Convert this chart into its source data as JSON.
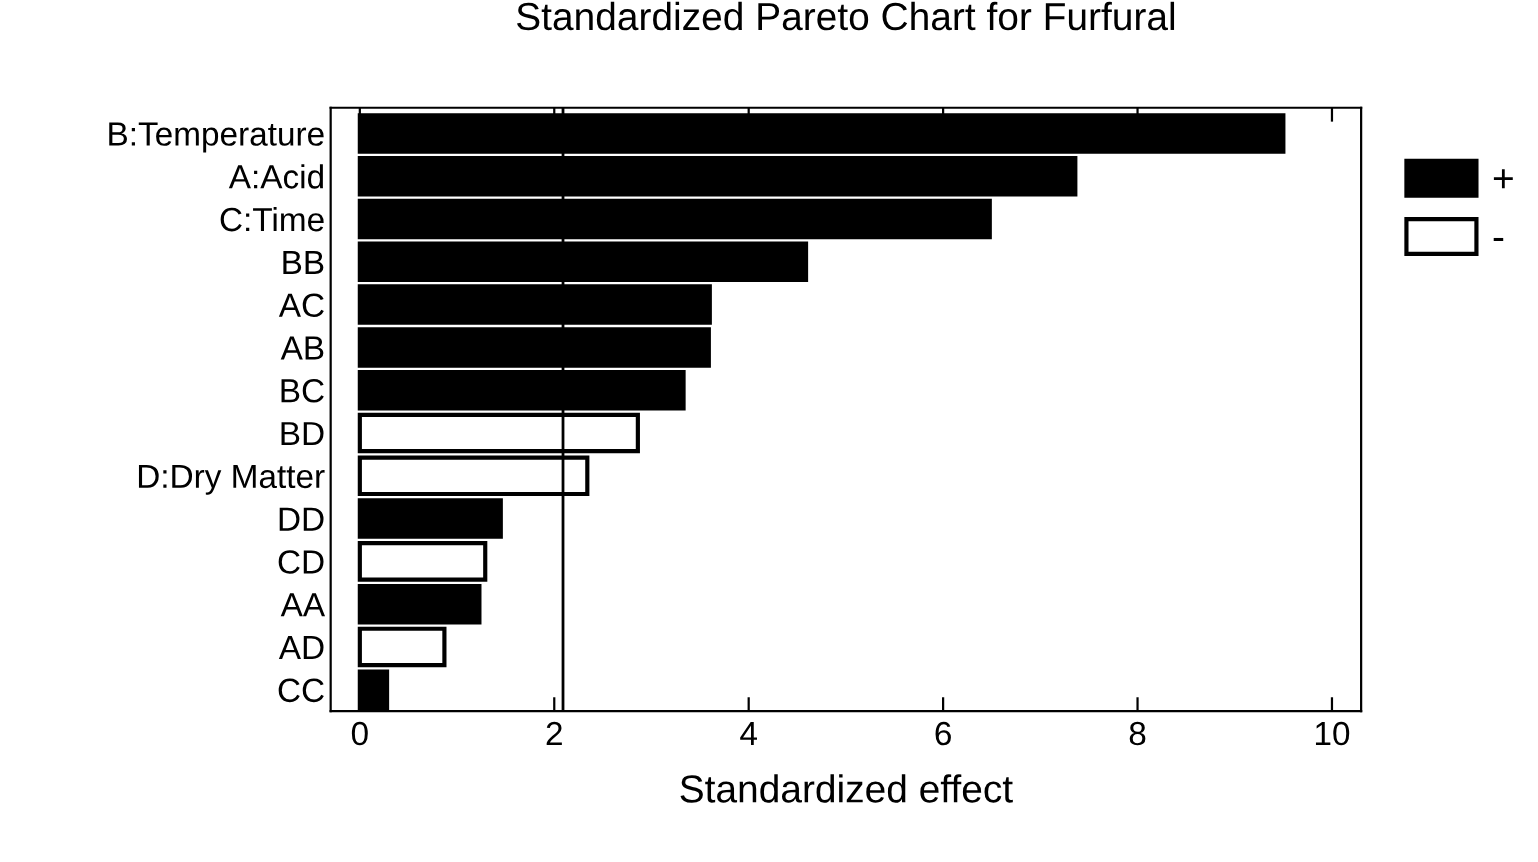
{
  "chart_data": {
    "type": "bar",
    "orientation": "horizontal",
    "title": "Standardized Pareto Chart for Furfural",
    "xlabel": "Standardized effect",
    "categories": [
      "B:Temperature",
      "A:Acid",
      "C:Time",
      "BB",
      "AC",
      "AB",
      "BC",
      "BD",
      "D:Dry Matter",
      "DD",
      "CD",
      "AA",
      "AD",
      "CC"
    ],
    "series": [
      {
        "name": "+",
        "color": "#000000",
        "values": [
          9.5,
          7.36,
          6.48,
          4.59,
          3.6,
          3.59,
          3.33,
          null,
          null,
          1.45,
          null,
          1.23,
          null,
          0.28
        ]
      },
      {
        "name": "-",
        "color": "#ffffff",
        "values": [
          null,
          null,
          null,
          null,
          null,
          null,
          null,
          2.86,
          2.34,
          null,
          1.29,
          null,
          0.87,
          null
        ]
      }
    ],
    "xlim": [
      -0.3,
      10.3
    ],
    "xticks": [
      0,
      2,
      4,
      6,
      8,
      10
    ],
    "ref_lines": [
      {
        "axis": "x",
        "value": 2.09,
        "color": "#000000"
      }
    ],
    "legend": "right",
    "grid": false
  }
}
